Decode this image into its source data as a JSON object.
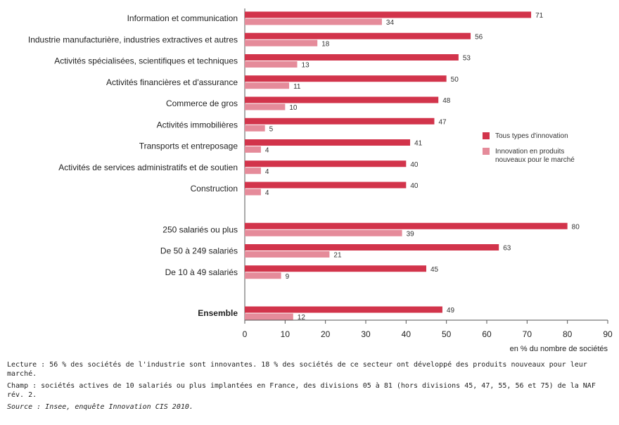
{
  "chart_data": {
    "type": "bar",
    "orientation": "horizontal",
    "categories": [
      "Information et communication",
      "Industrie manufacturière, industries extractives et autres",
      "Activités spécialisées, scientifiques et techniques",
      "Activités financières et d'assurance",
      "Commerce de gros",
      "Activités immobilières",
      "Transports et entreposage",
      "Activités de services administratifs et de soutien",
      "Construction",
      "250 salariés ou plus",
      "De 50 à 249 salariés",
      "De 10 à 49 salariés",
      "Ensemble"
    ],
    "groups": [
      9,
      3,
      1
    ],
    "bold_categories": [
      "Ensemble"
    ],
    "series": [
      {
        "name": "Tous types d'innovation",
        "color": "#d2344b",
        "values": [
          71,
          56,
          53,
          50,
          48,
          47,
          41,
          40,
          40,
          80,
          63,
          45,
          49
        ]
      },
      {
        "name": "Innovation en produits nouveaux pour le marché",
        "legend_lines": [
          "Innovation en produits",
          "nouveaux pour le marché"
        ],
        "color": "#e58b9a",
        "values": [
          34,
          18,
          13,
          11,
          10,
          5,
          4,
          4,
          4,
          39,
          21,
          9,
          12
        ]
      }
    ],
    "x_ticks": [
      "0",
      "10",
      "20",
      "30",
      "40",
      "50",
      "60",
      "70",
      "80",
      "90"
    ],
    "xlim": [
      0,
      90
    ],
    "xlabel": "en % du nombre de sociétés",
    "ylabel": "",
    "title": "",
    "grid": false,
    "legend_position": "right"
  },
  "notes": {
    "lecture": "Lecture : 56 % des sociétés de l'industrie sont innovantes. 18 % des sociétés de ce secteur ont développé des produits nouveaux pour leur marché.",
    "champ": "Champ : sociétés actives de 10 salariés ou plus implantées en France, des divisions 05 à 81 (hors divisions 45, 47, 55, 56 et 75) de la NAF rév. 2.",
    "source": "Source : Insee, enquête Innovation CIS 2010."
  }
}
